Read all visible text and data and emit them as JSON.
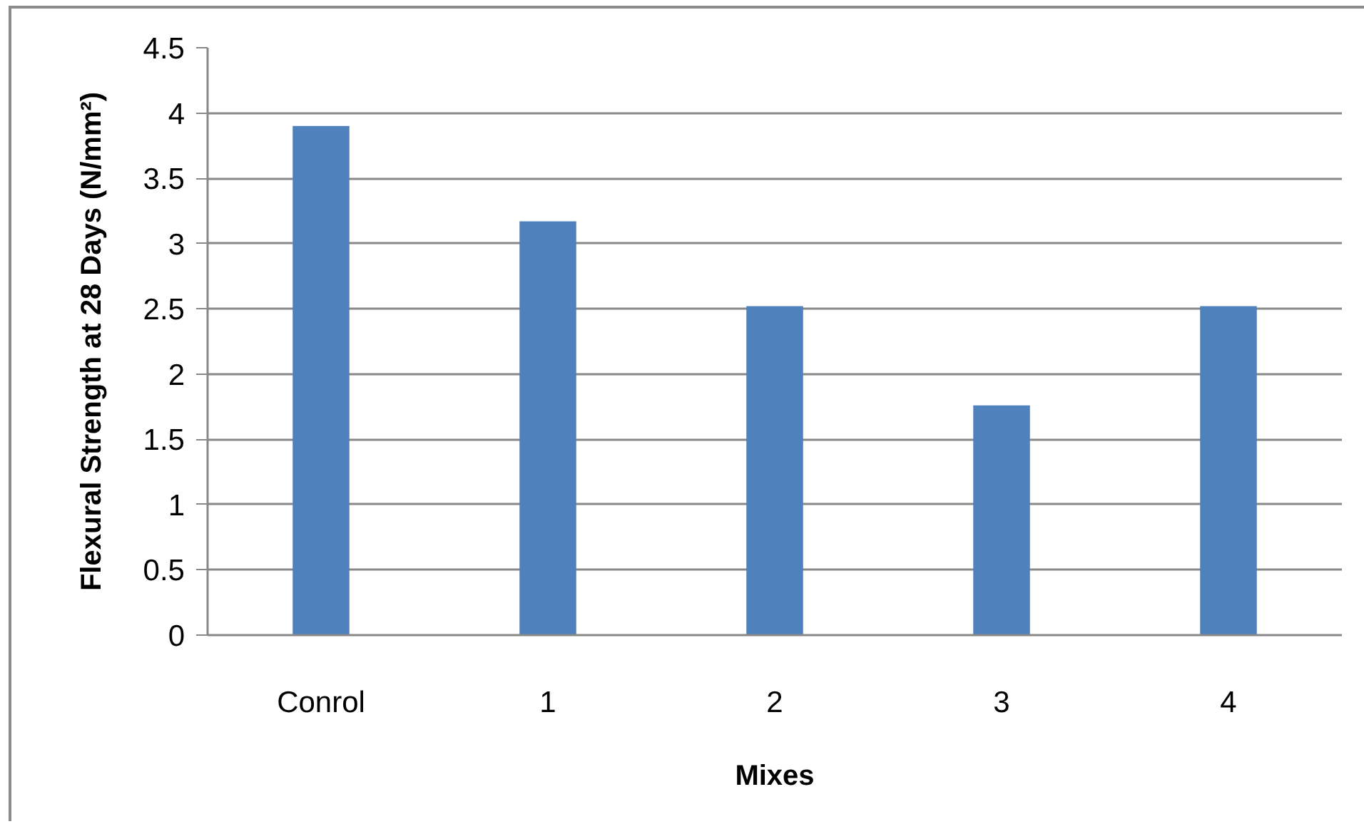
{
  "chart_data": {
    "type": "bar",
    "xlabel": "Mixes",
    "ylabel": "Flexural Strength at 28 Days (N/mm²)",
    "categories": [
      "Conrol",
      "1",
      "2",
      "3",
      "4"
    ],
    "values": [
      3.9,
      3.17,
      2.52,
      1.76,
      2.52
    ],
    "color": "#4f81bd",
    "ylim": [
      0,
      4.5
    ],
    "yticks": [
      0,
      0.5,
      1,
      1.5,
      2,
      2.5,
      3,
      3.5,
      4,
      4.5
    ],
    "grid": "y"
  }
}
